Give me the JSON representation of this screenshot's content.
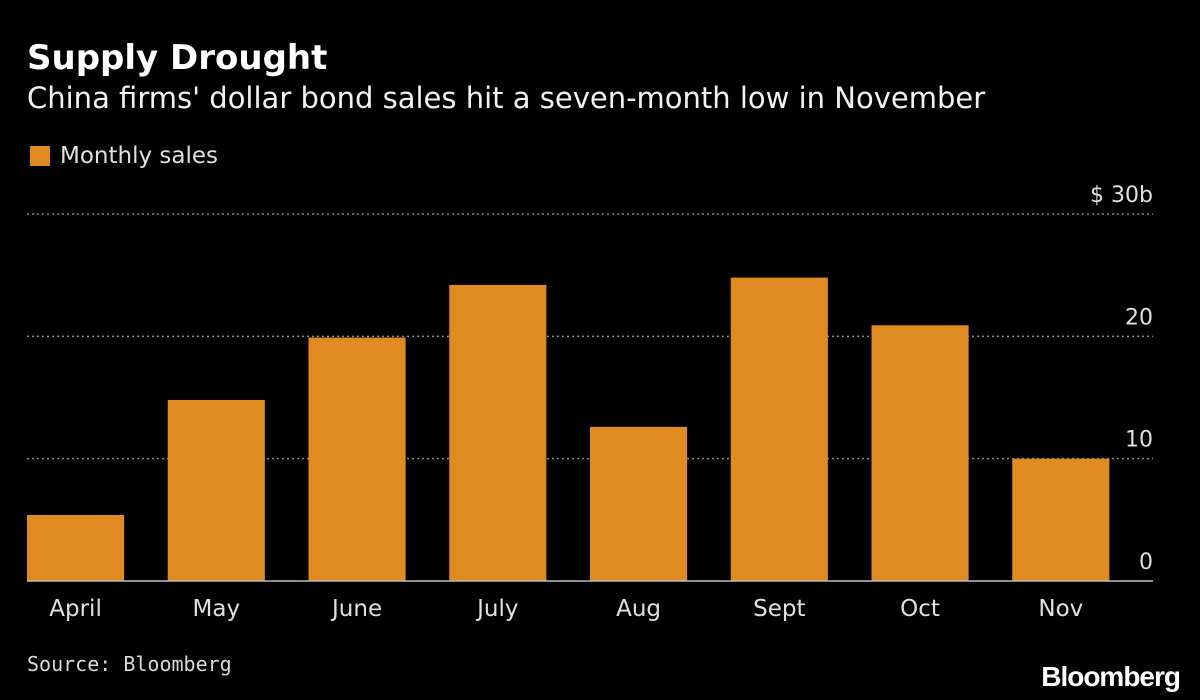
{
  "colors": {
    "bar": "#e08a22",
    "grid": "#8a8a8a",
    "axis": "#bdbdbd",
    "text": "#e0e0e0"
  },
  "chart_data": {
    "type": "bar",
    "title": "Supply Drought",
    "subtitle": "China firms' dollar bond sales hit a seven-month low in November",
    "categories": [
      "April",
      "May",
      "June",
      "July",
      "Aug",
      "Sept",
      "Oct",
      "Nov"
    ],
    "series": [
      {
        "name": "Monthly sales",
        "values": [
          5.4,
          14.8,
          19.9,
          24.2,
          12.6,
          24.8,
          20.9,
          10.0
        ]
      }
    ],
    "ylim": [
      0,
      30
    ],
    "yticks": [
      0,
      10,
      20,
      30
    ],
    "ytick_labels": [
      "0",
      "10",
      "20",
      "$ 30b"
    ],
    "y_axis_side": "right",
    "grid": true,
    "legend_position": "top-left",
    "source": "Source: Bloomberg",
    "brand": "Bloomberg"
  }
}
